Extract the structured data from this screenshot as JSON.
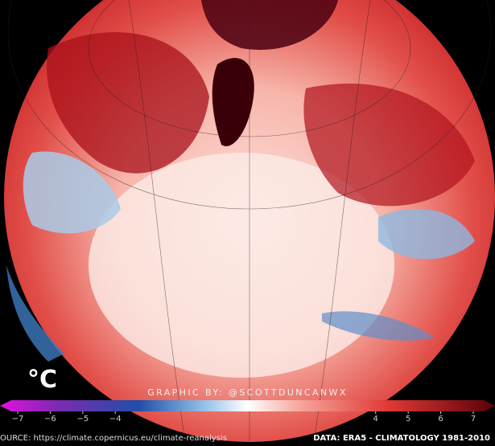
{
  "map": {
    "unit_label": "°C",
    "credit": "GRAPHIC BY: @SCOTTDUNCANWX",
    "source": "OURCE: https://climate.copernicus.eu/climate-reanalysis",
    "data_note": "DATA: ERA5 - CLIMATOLOGY 1981-2010",
    "colorbar": {
      "ticks": [
        {
          "value": -7,
          "label": "−7"
        },
        {
          "value": -6,
          "label": "−6"
        },
        {
          "value": -5,
          "label": "−5"
        },
        {
          "value": -4,
          "label": "−4"
        },
        4,
        5,
        6,
        7
      ]
    }
  }
}
